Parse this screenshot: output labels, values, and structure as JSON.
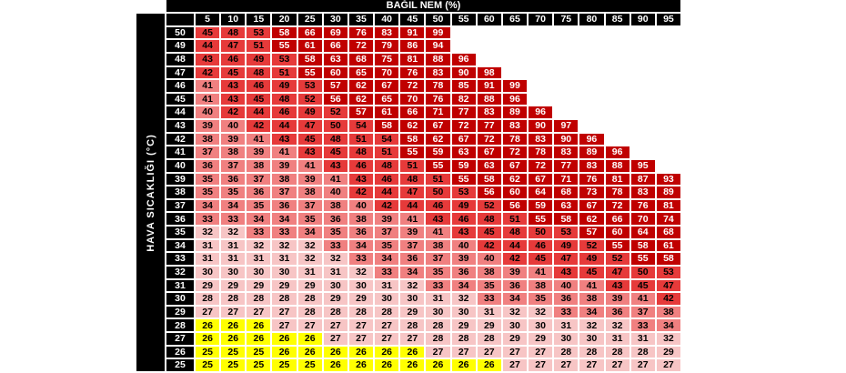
{
  "header": {
    "title": "BAĞIL NEM (%)"
  },
  "sidebar": {
    "label": "HAVA SICAKLIĞI (°C)"
  },
  "chart_data": {
    "type": "heatmap",
    "title": "BAĞIL NEM (%)",
    "xlabel": "BAĞIL NEM (%)",
    "ylabel": "HAVA SICAKLIĞI (°C)",
    "x_humidity_percent": [
      5,
      10,
      15,
      20,
      25,
      30,
      35,
      40,
      45,
      50,
      55,
      60,
      65,
      70,
      75,
      80,
      85,
      90,
      95
    ],
    "y_temperature_c": [
      50,
      49,
      48,
      47,
      46,
      45,
      44,
      43,
      42,
      41,
      40,
      39,
      38,
      37,
      36,
      35,
      34,
      33,
      32,
      31,
      30,
      29,
      28,
      27,
      26,
      25
    ],
    "values": [
      [
        45,
        48,
        53,
        58,
        66,
        69,
        76,
        83,
        91,
        99
      ],
      [
        44,
        47,
        51,
        55,
        61,
        66,
        72,
        79,
        86,
        94
      ],
      [
        43,
        46,
        49,
        53,
        58,
        63,
        68,
        75,
        81,
        88,
        96
      ],
      [
        42,
        45,
        48,
        51,
        55,
        60,
        65,
        70,
        76,
        83,
        90,
        98
      ],
      [
        41,
        43,
        46,
        49,
        53,
        57,
        62,
        67,
        72,
        78,
        85,
        91,
        99
      ],
      [
        41,
        43,
        45,
        48,
        52,
        56,
        62,
        65,
        70,
        76,
        82,
        88,
        96
      ],
      [
        40,
        42,
        44,
        46,
        49,
        52,
        57,
        61,
        66,
        71,
        77,
        83,
        89,
        96
      ],
      [
        39,
        40,
        42,
        44,
        47,
        50,
        54,
        58,
        62,
        67,
        72,
        77,
        83,
        90,
        97
      ],
      [
        38,
        39,
        41,
        43,
        45,
        48,
        51,
        54,
        58,
        62,
        67,
        72,
        78,
        83,
        90,
        96
      ],
      [
        37,
        38,
        39,
        41,
        43,
        45,
        48,
        51,
        55,
        59,
        63,
        67,
        72,
        78,
        83,
        89,
        96
      ],
      [
        36,
        37,
        38,
        39,
        41,
        43,
        46,
        48,
        51,
        55,
        59,
        63,
        67,
        72,
        77,
        83,
        88,
        95
      ],
      [
        35,
        36,
        37,
        38,
        39,
        41,
        43,
        46,
        48,
        51,
        55,
        58,
        62,
        67,
        71,
        76,
        81,
        87,
        93
      ],
      [
        35,
        35,
        36,
        37,
        38,
        40,
        42,
        44,
        47,
        50,
        53,
        56,
        60,
        64,
        68,
        73,
        78,
        83,
        89
      ],
      [
        34,
        34,
        35,
        36,
        37,
        38,
        40,
        42,
        44,
        46,
        49,
        52,
        56,
        59,
        63,
        67,
        72,
        76,
        81
      ],
      [
        33,
        33,
        34,
        34,
        35,
        36,
        38,
        39,
        41,
        43,
        46,
        48,
        51,
        55,
        58,
        62,
        66,
        70,
        74
      ],
      [
        32,
        32,
        33,
        33,
        34,
        35,
        36,
        37,
        39,
        41,
        43,
        45,
        48,
        50,
        53,
        57,
        60,
        64,
        68
      ],
      [
        31,
        31,
        32,
        32,
        32,
        33,
        34,
        35,
        37,
        38,
        40,
        42,
        44,
        46,
        49,
        52,
        55,
        58,
        61
      ],
      [
        31,
        31,
        31,
        31,
        32,
        32,
        33,
        34,
        36,
        37,
        39,
        40,
        42,
        45,
        47,
        49,
        52,
        55,
        58
      ],
      [
        30,
        30,
        30,
        30,
        31,
        31,
        32,
        33,
        34,
        35,
        36,
        38,
        39,
        41,
        43,
        45,
        47,
        50,
        53
      ],
      [
        29,
        29,
        29,
        29,
        29,
        30,
        30,
        31,
        32,
        33,
        34,
        35,
        36,
        38,
        40,
        41,
        43,
        45,
        47
      ],
      [
        28,
        28,
        28,
        28,
        28,
        29,
        29,
        30,
        30,
        31,
        32,
        33,
        34,
        35,
        36,
        38,
        39,
        41,
        42
      ],
      [
        27,
        27,
        27,
        27,
        28,
        28,
        28,
        28,
        29,
        30,
        30,
        31,
        32,
        32,
        33,
        34,
        36,
        37,
        38
      ],
      [
        26,
        26,
        26,
        27,
        27,
        27,
        27,
        27,
        28,
        28,
        29,
        29,
        30,
        30,
        31,
        32,
        32,
        33,
        34
      ],
      [
        26,
        26,
        26,
        26,
        26,
        27,
        27,
        27,
        27,
        28,
        28,
        28,
        29,
        29,
        30,
        30,
        31,
        31,
        32
      ],
      [
        25,
        25,
        25,
        26,
        26,
        26,
        26,
        26,
        26,
        27,
        27,
        27,
        27,
        27,
        28,
        28,
        28,
        28,
        29
      ],
      [
        25,
        25,
        25,
        25,
        25,
        26,
        26,
        26,
        26,
        26,
        26,
        26,
        27,
        27,
        27,
        27,
        27,
        27,
        27
      ]
    ],
    "color_scale": [
      {
        "range": "<=26",
        "max": 26,
        "bg": "#FFFF00",
        "fg": "#000000"
      },
      {
        "range": "27-32",
        "max": 32,
        "bg": "#F7C5C5",
        "fg": "#000000"
      },
      {
        "range": "33-41",
        "max": 41,
        "bg": "#F08080",
        "fg": "#000000"
      },
      {
        "range": "42-54",
        "max": 54,
        "bg": "#E63A3A",
        "fg": "#000000"
      },
      {
        "range": ">=55",
        "max": 999,
        "bg": "#C00000",
        "fg": "#FFFFFF"
      }
    ],
    "header_bg": "#000000",
    "header_fg": "#FFFFFF",
    "gridline_color": "#FFFFFF",
    "legend_position": "none",
    "grid": true
  }
}
